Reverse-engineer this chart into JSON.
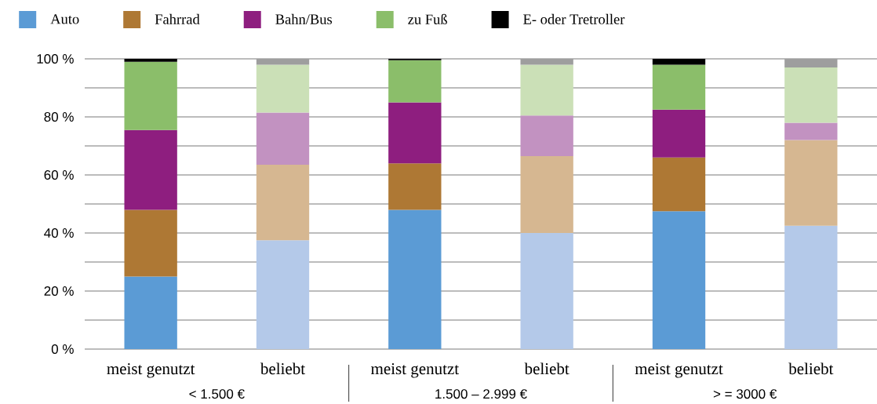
{
  "chart_data": {
    "type": "bar",
    "stacked": true,
    "categories": [
      "meist genutzt",
      "beliebt",
      "meist genutzt",
      "beliebt",
      "meist genutzt",
      "beliebt"
    ],
    "series": [
      {
        "name": "Auto",
        "color": "#5b9bd5",
        "colors": [
          "#5b9bd5",
          "#b4c9e9",
          "#5b9bd5",
          "#b4c9e9",
          "#5b9bd5",
          "#b4c9e9"
        ],
        "values": [
          25,
          37.5,
          48,
          40,
          47.5,
          42.5
        ]
      },
      {
        "name": "Fahrrad",
        "color": "#ae7834",
        "colors": [
          "#ae7834",
          "#d6b791",
          "#ae7834",
          "#d6b791",
          "#ae7834",
          "#d6b791"
        ],
        "values": [
          23,
          26,
          16,
          26.5,
          18.5,
          29.5
        ]
      },
      {
        "name": "Bahn/Bus",
        "color": "#8e1e7f",
        "colors": [
          "#8e1e7f",
          "#c292c1",
          "#8e1e7f",
          "#c292c1",
          "#8e1e7f",
          "#c292c1"
        ],
        "values": [
          27.5,
          18,
          21,
          14,
          16.5,
          6
        ]
      },
      {
        "name": "zu Fuß",
        "color": "#8bbe6a",
        "colors": [
          "#8bbe6a",
          "#cbe0b7",
          "#8bbe6a",
          "#cbe0b7",
          "#8bbe6a",
          "#cbe0b7"
        ],
        "values": [
          23.5,
          16.5,
          14.5,
          17.5,
          15.5,
          19
        ]
      },
      {
        "name": "E- oder Tretroller",
        "color": "#000000",
        "colors": [
          "#000000",
          "#9e9e9e",
          "#000000",
          "#9e9e9e",
          "#000000",
          "#9e9e9e"
        ],
        "values": [
          1,
          2,
          0.5,
          2,
          2,
          3
        ]
      }
    ],
    "ylim": [
      0,
      100
    ],
    "yticks": [
      {
        "value": 0,
        "label": "0 %"
      },
      {
        "value": 10,
        "label": null
      },
      {
        "value": 20,
        "label": "20 %"
      },
      {
        "value": 30,
        "label": null
      },
      {
        "value": 40,
        "label": "40 %"
      },
      {
        "value": 50,
        "label": null
      },
      {
        "value": 60,
        "label": "60 %"
      },
      {
        "value": 70,
        "label": null
      },
      {
        "value": 80,
        "label": "80 %"
      },
      {
        "value": 90,
        "label": null
      },
      {
        "value": 100,
        "label": "100 %"
      }
    ],
    "grid": "y",
    "legend": "top",
    "annotations": [
      "< 1.500 €",
      "1.500 – 2.999 €",
      "> = 3000 €"
    ]
  }
}
